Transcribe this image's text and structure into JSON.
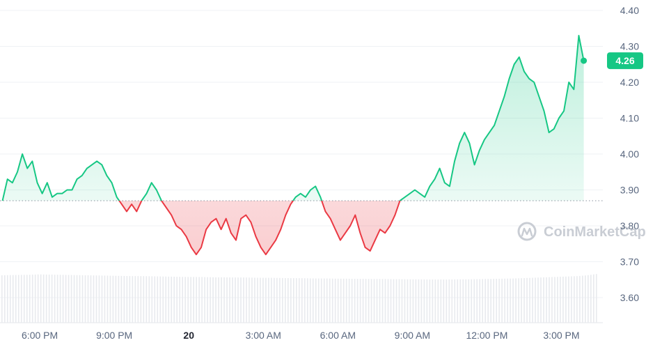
{
  "chart_data": {
    "type": "line",
    "baseline": 3.87,
    "current_price": "4.26",
    "ylim": [
      3.52,
      4.42
    ],
    "y_ticks": [
      "4.40",
      "4.30",
      "4.20",
      "4.10",
      "4.00",
      "3.90",
      "3.80",
      "3.70",
      "3.60"
    ],
    "x_ticks": [
      {
        "label": "6:00 PM",
        "hour": 1.5,
        "bold": false
      },
      {
        "label": "9:00 PM",
        "hour": 4.5,
        "bold": false
      },
      {
        "label": "20",
        "hour": 7.5,
        "bold": true
      },
      {
        "label": "3:00 AM",
        "hour": 10.5,
        "bold": false
      },
      {
        "label": "6:00 AM",
        "hour": 13.5,
        "bold": false
      },
      {
        "label": "9:00 AM",
        "hour": 16.5,
        "bold": false
      },
      {
        "label": "12:00 PM",
        "hour": 19.5,
        "bold": false
      },
      {
        "label": "3:00 PM",
        "hour": 22.5,
        "bold": false
      }
    ],
    "colors": {
      "up": "#16c784",
      "down": "#ea3943"
    },
    "watermark": "CoinMarketCap",
    "points": [
      [
        0.0,
        3.87
      ],
      [
        0.2,
        3.93
      ],
      [
        0.4,
        3.92
      ],
      [
        0.6,
        3.95
      ],
      [
        0.8,
        4.0
      ],
      [
        1.0,
        3.96
      ],
      [
        1.2,
        3.98
      ],
      [
        1.4,
        3.92
      ],
      [
        1.6,
        3.89
      ],
      [
        1.8,
        3.92
      ],
      [
        2.0,
        3.88
      ],
      [
        2.2,
        3.89
      ],
      [
        2.4,
        3.89
      ],
      [
        2.6,
        3.9
      ],
      [
        2.8,
        3.9
      ],
      [
        3.0,
        3.93
      ],
      [
        3.2,
        3.94
      ],
      [
        3.4,
        3.96
      ],
      [
        3.6,
        3.97
      ],
      [
        3.8,
        3.98
      ],
      [
        4.0,
        3.97
      ],
      [
        4.2,
        3.94
      ],
      [
        4.4,
        3.92
      ],
      [
        4.6,
        3.88
      ],
      [
        4.8,
        3.86
      ],
      [
        5.0,
        3.84
      ],
      [
        5.2,
        3.86
      ],
      [
        5.4,
        3.84
      ],
      [
        5.6,
        3.87
      ],
      [
        5.8,
        3.89
      ],
      [
        6.0,
        3.92
      ],
      [
        6.2,
        3.9
      ],
      [
        6.4,
        3.87
      ],
      [
        6.6,
        3.85
      ],
      [
        6.8,
        3.83
      ],
      [
        7.0,
        3.8
      ],
      [
        7.2,
        3.79
      ],
      [
        7.4,
        3.77
      ],
      [
        7.6,
        3.74
      ],
      [
        7.8,
        3.72
      ],
      [
        8.0,
        3.74
      ],
      [
        8.2,
        3.79
      ],
      [
        8.4,
        3.81
      ],
      [
        8.6,
        3.82
      ],
      [
        8.8,
        3.79
      ],
      [
        9.0,
        3.82
      ],
      [
        9.2,
        3.78
      ],
      [
        9.4,
        3.76
      ],
      [
        9.6,
        3.82
      ],
      [
        9.8,
        3.83
      ],
      [
        10.0,
        3.81
      ],
      [
        10.2,
        3.77
      ],
      [
        10.4,
        3.74
      ],
      [
        10.6,
        3.72
      ],
      [
        10.8,
        3.74
      ],
      [
        11.0,
        3.76
      ],
      [
        11.2,
        3.79
      ],
      [
        11.4,
        3.83
      ],
      [
        11.6,
        3.86
      ],
      [
        11.8,
        3.88
      ],
      [
        12.0,
        3.89
      ],
      [
        12.2,
        3.88
      ],
      [
        12.4,
        3.9
      ],
      [
        12.6,
        3.91
      ],
      [
        12.8,
        3.88
      ],
      [
        13.0,
        3.84
      ],
      [
        13.2,
        3.82
      ],
      [
        13.4,
        3.79
      ],
      [
        13.6,
        3.76
      ],
      [
        13.8,
        3.78
      ],
      [
        14.0,
        3.8
      ],
      [
        14.2,
        3.83
      ],
      [
        14.4,
        3.78
      ],
      [
        14.6,
        3.74
      ],
      [
        14.8,
        3.73
      ],
      [
        15.0,
        3.76
      ],
      [
        15.2,
        3.79
      ],
      [
        15.4,
        3.78
      ],
      [
        15.6,
        3.8
      ],
      [
        15.8,
        3.83
      ],
      [
        16.0,
        3.87
      ],
      [
        16.2,
        3.88
      ],
      [
        16.4,
        3.89
      ],
      [
        16.6,
        3.9
      ],
      [
        16.8,
        3.89
      ],
      [
        17.0,
        3.88
      ],
      [
        17.2,
        3.91
      ],
      [
        17.4,
        3.93
      ],
      [
        17.6,
        3.96
      ],
      [
        17.8,
        3.92
      ],
      [
        18.0,
        3.91
      ],
      [
        18.2,
        3.98
      ],
      [
        18.4,
        4.03
      ],
      [
        18.6,
        4.06
      ],
      [
        18.8,
        4.03
      ],
      [
        19.0,
        3.97
      ],
      [
        19.2,
        4.01
      ],
      [
        19.4,
        4.04
      ],
      [
        19.6,
        4.06
      ],
      [
        19.8,
        4.08
      ],
      [
        20.0,
        4.12
      ],
      [
        20.2,
        4.16
      ],
      [
        20.4,
        4.21
      ],
      [
        20.6,
        4.25
      ],
      [
        20.8,
        4.27
      ],
      [
        21.0,
        4.23
      ],
      [
        21.2,
        4.21
      ],
      [
        21.4,
        4.2
      ],
      [
        21.6,
        4.16
      ],
      [
        21.8,
        4.12
      ],
      [
        22.0,
        4.06
      ],
      [
        22.2,
        4.07
      ],
      [
        22.4,
        4.1
      ],
      [
        22.6,
        4.12
      ],
      [
        22.8,
        4.2
      ],
      [
        23.0,
        4.18
      ],
      [
        23.2,
        4.33
      ],
      [
        23.4,
        4.26
      ]
    ],
    "volume": [
      0.55,
      0.56,
      0.57,
      0.58,
      0.6,
      0.59,
      0.58,
      0.57,
      0.56,
      0.55,
      0.54,
      0.53,
      0.52,
      0.51,
      0.5,
      0.5,
      0.49,
      0.48,
      0.47,
      0.46,
      0.45,
      0.45,
      0.44,
      0.43,
      0.43,
      0.42,
      0.42,
      0.41,
      0.4,
      0.4,
      0.39,
      0.38,
      0.38,
      0.37,
      0.36,
      0.36,
      0.35,
      0.35,
      0.34,
      0.34,
      0.33,
      0.33,
      0.32,
      0.32,
      0.31,
      0.31,
      0.3,
      0.3,
      0.3,
      0.31,
      0.31,
      0.32,
      0.33,
      0.34,
      0.35,
      0.36,
      0.38,
      0.4,
      0.42,
      0.44,
      0.46,
      0.48,
      0.5,
      0.55,
      0.62
    ]
  }
}
